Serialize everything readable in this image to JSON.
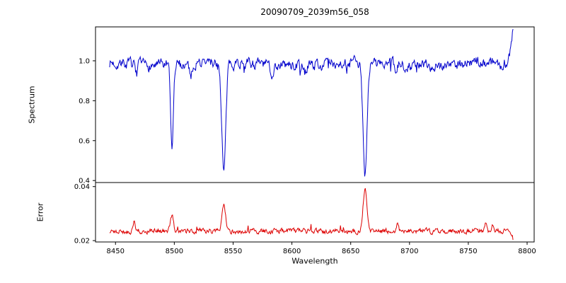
{
  "chart_data": {
    "type": "line",
    "title": "20090709_2039m56_058",
    "xlabel": "Wavelength",
    "x_range": [
      8445,
      8788
    ],
    "xlim": [
      8433,
      8806
    ],
    "xticks": [
      8450,
      8500,
      8550,
      8600,
      8650,
      8700,
      8750,
      8800
    ],
    "xtick_labels": [
      "8450",
      "8500",
      "8550",
      "8600",
      "8650",
      "8700",
      "8750",
      "8800"
    ],
    "n_points": 700,
    "seed": 7,
    "panels": [
      {
        "ylabel": "Spectrum",
        "color": "#0000cc",
        "ylim": [
          0.39,
          1.17
        ],
        "yticks": [
          0.4,
          0.6,
          0.8,
          1.0
        ],
        "ytick_labels": [
          "0.4",
          "0.6",
          "0.8",
          "1.0"
        ],
        "continuum": 0.985,
        "noise_amplitude": 0.045,
        "absorption_lines": [
          {
            "center": 8498.0,
            "depth": 0.42,
            "sigma": 1.2
          },
          {
            "center": 8542.1,
            "depth": 0.55,
            "sigma": 1.7
          },
          {
            "center": 8662.1,
            "depth": 0.555,
            "sigma": 1.7
          },
          {
            "center": 8468.0,
            "depth": 0.05,
            "sigma": 1.0
          },
          {
            "center": 8514.1,
            "depth": 0.06,
            "sigma": 1.0
          },
          {
            "center": 8583.0,
            "depth": 0.05,
            "sigma": 1.0
          },
          {
            "center": 8611.0,
            "depth": 0.04,
            "sigma": 1.0
          },
          {
            "center": 8648.0,
            "depth": 0.04,
            "sigma": 1.0
          },
          {
            "center": 8688.6,
            "depth": 0.06,
            "sigma": 1.0
          }
        ],
        "edge_spike": {
          "start": 8784,
          "slope_per_angstrom": 0.04
        }
      },
      {
        "ylabel": "Error",
        "color": "#dd0000",
        "ylim": [
          0.0195,
          0.0415
        ],
        "yticks": [
          0.02,
          0.04
        ],
        "ytick_labels": [
          "0.02",
          "0.04"
        ],
        "baseline": 0.0235,
        "noise_amplitude": 0.0016,
        "peaks": [
          {
            "center": 8498.0,
            "height": 0.006,
            "sigma": 1.2
          },
          {
            "center": 8542.1,
            "height": 0.0105,
            "sigma": 1.5
          },
          {
            "center": 8662.1,
            "height": 0.0158,
            "sigma": 1.5
          },
          {
            "center": 8430.0,
            "height": 0.003,
            "sigma": 0.8
          },
          {
            "center": 8466.0,
            "height": 0.004,
            "sigma": 0.8
          },
          {
            "center": 8690.0,
            "height": 0.0025,
            "sigma": 0.8
          },
          {
            "center": 8765.0,
            "height": 0.003,
            "sigma": 0.9
          },
          {
            "center": 8771.0,
            "height": 0.0028,
            "sigma": 0.9
          }
        ],
        "edge_drop": {
          "start": 8783,
          "slope_per_angstrom": 0.0006
        }
      }
    ]
  }
}
